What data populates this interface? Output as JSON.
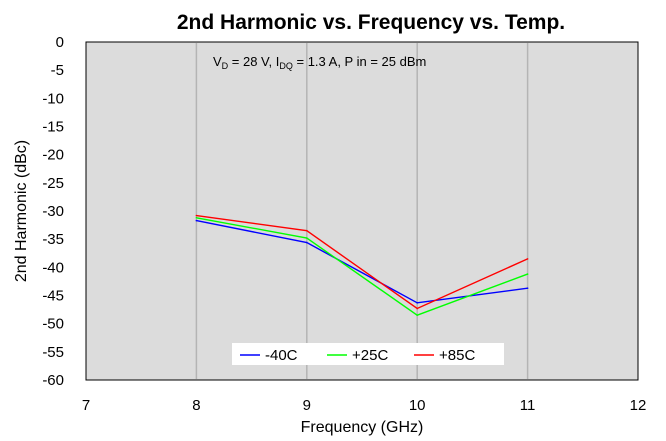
{
  "chart_data": {
    "type": "line",
    "title": "2nd Harmonic vs. Frequency vs. Temp.",
    "xlabel": "Frequency (GHz)",
    "ylabel": "2nd Harmonic (dBc)",
    "xlim": [
      7,
      12
    ],
    "ylim": [
      -60,
      0
    ],
    "x_ticks": [
      "7",
      "8",
      "9",
      "10",
      "11",
      "12"
    ],
    "y_ticks": [
      "0",
      "-5",
      "-10",
      "-15",
      "-20",
      "-25",
      "-30",
      "-35",
      "-40",
      "-45",
      "-50",
      "-55",
      "-60"
    ],
    "grid": "vertical",
    "annotation": {
      "v": "V",
      "v_sub": "D",
      "v_value": " = 28 V, I",
      "i_sub": "DQ",
      "rest": " = 1.3 A, P in = 25 dBm"
    },
    "legend_position": "bottom-center",
    "series": [
      {
        "name": "-40C",
        "color": "#0000ff",
        "x": [
          8,
          9,
          10,
          11
        ],
        "y": [
          -31.7,
          -35.6,
          -46.3,
          -43.7
        ]
      },
      {
        "name": "+25C",
        "color": "#00ff00",
        "x": [
          8,
          9,
          10,
          11
        ],
        "y": [
          -31.2,
          -34.8,
          -48.5,
          -41.2
        ]
      },
      {
        "name": "+85C",
        "color": "#ff0000",
        "x": [
          8,
          9,
          10,
          11
        ],
        "y": [
          -30.8,
          -33.5,
          -47.3,
          -38.5
        ]
      }
    ]
  }
}
